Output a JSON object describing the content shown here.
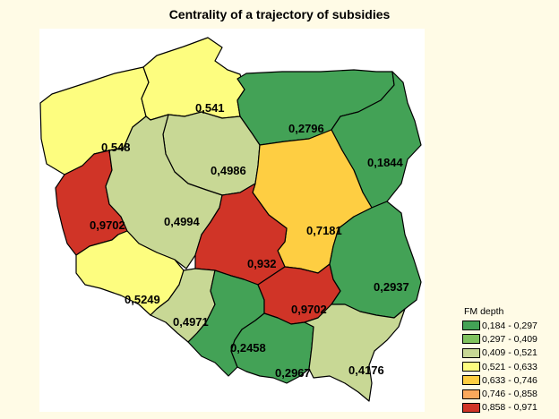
{
  "title": "Centrality of a trajectory of subsidies",
  "legend": {
    "title": "FM depth",
    "items": [
      {
        "label": "0,184 - 0,297",
        "color": "#43a256"
      },
      {
        "label": "0,297 - 0,409",
        "color": "#7fc25e"
      },
      {
        "label": "0,409 - 0,521",
        "color": "#c8d895"
      },
      {
        "label": "0,521 - 0,633",
        "color": "#fdfd7f"
      },
      {
        "label": "0,633 - 0,746",
        "color": "#fece42"
      },
      {
        "label": "0,746 - 0,858",
        "color": "#faa85c"
      },
      {
        "label": "0,858 - 0,971",
        "color": "#d03427"
      }
    ]
  },
  "regions": [
    {
      "id": "zachodniopomorskie",
      "value": "0,548",
      "bin": 3
    },
    {
      "id": "pomorskie",
      "value": "0,541",
      "bin": 3
    },
    {
      "id": "warminsko-mazurskie",
      "value": "0,2796",
      "bin": 0
    },
    {
      "id": "podlaskie",
      "value": "0,1844",
      "bin": 0
    },
    {
      "id": "lubuskie",
      "value": "0,9702",
      "bin": 6
    },
    {
      "id": "kujawsko-pomorskie",
      "value": "0,4986",
      "bin": 2
    },
    {
      "id": "wielkopolskie",
      "value": "0,4994",
      "bin": 2
    },
    {
      "id": "mazowieckie",
      "value": "0,7181",
      "bin": 4
    },
    {
      "id": "lodzkie",
      "value": "0,932",
      "bin": 6
    },
    {
      "id": "dolnoslaskie",
      "value": "0,5249",
      "bin": 3
    },
    {
      "id": "opolskie",
      "value": "0,4971",
      "bin": 2
    },
    {
      "id": "slaskie",
      "value": "0,2458",
      "bin": 0
    },
    {
      "id": "swietokrzyskie",
      "value": "0,9702",
      "bin": 6
    },
    {
      "id": "lubelskie",
      "value": "0,2937",
      "bin": 0
    },
    {
      "id": "malopolskie",
      "value": "0,2967",
      "bin": 0
    },
    {
      "id": "podkarpackie",
      "value": "0,4176",
      "bin": 2
    }
  ]
}
